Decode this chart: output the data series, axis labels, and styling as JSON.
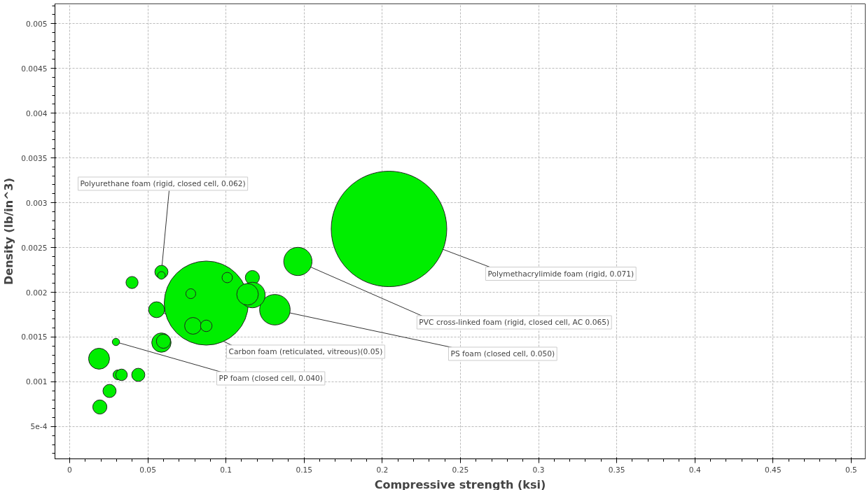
{
  "chart_data": {
    "type": "bubble",
    "xlabel": "Compressive strength (ksi)",
    "ylabel": "Density (lb/in^3)",
    "color": "#00ee00",
    "x": [
      0.2043,
      0.0874,
      0.146,
      0.1313,
      0.0556,
      0.0587,
      0.0587,
      0.0399,
      0.0775,
      0.1008,
      0.1169,
      0.1169,
      0.1138,
      0.0789,
      0.0874,
      0.0587,
      0.06,
      0.0296,
      0.0188,
      0.0309,
      0.0332,
      0.0439,
      0.0255,
      0.0193
    ],
    "values": [
      0.002707,
      0.001879,
      0.002344,
      0.001805,
      0.001805,
      0.002227,
      0.002188,
      0.002109,
      0.001984,
      0.002164,
      0.002164,
      0.001969,
      0.001977,
      0.001625,
      0.001625,
      0.001438,
      0.001453,
      0.001445,
      0.001258,
      0.001078,
      0.001078,
      0.001078,
      0.000898,
      0.000719
    ],
    "sizes": [
      1,
      0.53,
      0.06,
      0.07,
      0.019,
      0.013,
      0.0044,
      0.011,
      0.0073,
      0.0081,
      0.015,
      0.049,
      0.035,
      0.021,
      0.01,
      0.028,
      0.015,
      0.004,
      0.033,
      0.0073,
      0.01,
      0.013,
      0.013,
      0.015
    ],
    "xlim": [
      -0.0094,
      0.509
    ],
    "ylim": [
      0.00014,
      0.00522
    ],
    "xticks": [
      0,
      0.05,
      0.1,
      0.15,
      0.2,
      0.25,
      0.3,
      0.35,
      0.4,
      0.45,
      0.5
    ],
    "yticks": [
      {
        "value": 0.0005,
        "label": "5e-4"
      },
      0.001,
      0.0015,
      0.002,
      0.0025,
      0.003,
      0.0035,
      0.004,
      0.0045,
      0.005
    ],
    "grid": true,
    "annotations": [
      {
        "text": "Polyurethane foam (rigid, closed cell, 0.062)",
        "x": 0.0587,
        "y": 0.002227
      },
      {
        "text": "Polymethacrylimide foam (rigid, 0.071)",
        "x": 0.2043,
        "y": 0.002707
      },
      {
        "text": "PVC cross-linked foam (rigid, closed cell, AC 0.065)",
        "x": 0.146,
        "y": 0.002344
      },
      {
        "text": "Carbon foam (reticulated, vitreous)(0.05)",
        "x": 0.0556,
        "y": 0.001805
      },
      {
        "text": "PS foam (closed cell, 0.050)",
        "x": 0.1313,
        "y": 0.001805
      },
      {
        "text": "PP foam (closed cell, 0.040)",
        "x": 0.0296,
        "y": 0.001445
      }
    ]
  }
}
